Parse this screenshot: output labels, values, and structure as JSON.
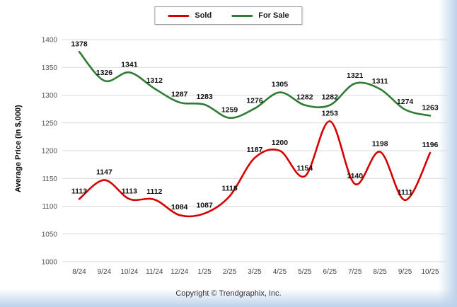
{
  "footer": "Copyright © Trendgraphix, Inc.",
  "chart_data": {
    "type": "line",
    "title": "",
    "xlabel": "",
    "ylabel": "Average Price (in $,000)",
    "categories": [
      "8/24",
      "9/24",
      "10/24",
      "11/24",
      "12/24",
      "1/25",
      "2/25",
      "3/25",
      "4/25",
      "5/25",
      "6/25",
      "7/25",
      "8/25",
      "9/25",
      "10/25"
    ],
    "series": [
      {
        "name": "Sold",
        "color": "#d40000",
        "values": [
          1113,
          1147,
          1113,
          1112,
          1084,
          1087,
          1118,
          1187,
          1200,
          1154,
          1253,
          1140,
          1198,
          1111,
          1196
        ]
      },
      {
        "name": "For Sale",
        "color": "#2e7d32",
        "values": [
          1378,
          1326,
          1341,
          1312,
          1287,
          1283,
          1259,
          1276,
          1305,
          1282,
          1282,
          1321,
          1311,
          1274,
          1263
        ]
      }
    ],
    "ylim": [
      1000,
      1400
    ],
    "y_ticks": [
      1000,
      1050,
      1100,
      1150,
      1200,
      1250,
      1300,
      1350,
      1400
    ],
    "grid": true,
    "legend_position": "top",
    "label_color": "#111111",
    "tick_color": "#555555",
    "grid_color": "#d9d9d9"
  }
}
